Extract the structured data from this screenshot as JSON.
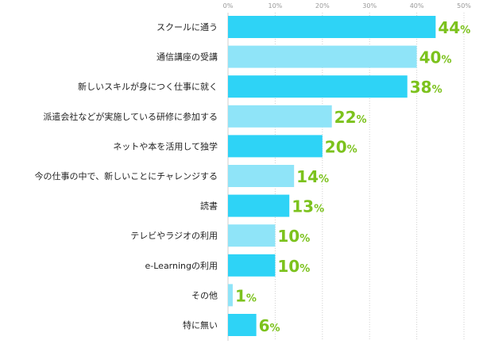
{
  "chart_data": {
    "type": "bar",
    "orientation": "horizontal",
    "categories": [
      "スクールに通う",
      "通信講座の受講",
      "新しいスキルが身につく仕事に就く",
      "派遣会社などが実施している研修に参加する",
      "ネットや本を活用して独学",
      "今の仕事の中で、新しいことにチャレンジする",
      "読書",
      "テレビやラジオの利用",
      "e-Learningの利用",
      "その他",
      "特に無い"
    ],
    "values": [
      44,
      40,
      38,
      22,
      20,
      14,
      13,
      10,
      10,
      1,
      6
    ],
    "value_unit": "%",
    "xlim": [
      0,
      50
    ],
    "ticks": [
      0,
      10,
      20,
      30,
      40,
      50
    ],
    "tick_labels": [
      "0%",
      "10%",
      "20%",
      "30%",
      "40%",
      "50%"
    ],
    "grid": true,
    "colors": {
      "bar_primary": "#2ed3f6",
      "bar_secondary": "#8fe4f8",
      "value_label": "#7cc21d",
      "grid": "#cfcfcf",
      "tick_text": "#999999",
      "category_text": "#222222"
    }
  }
}
